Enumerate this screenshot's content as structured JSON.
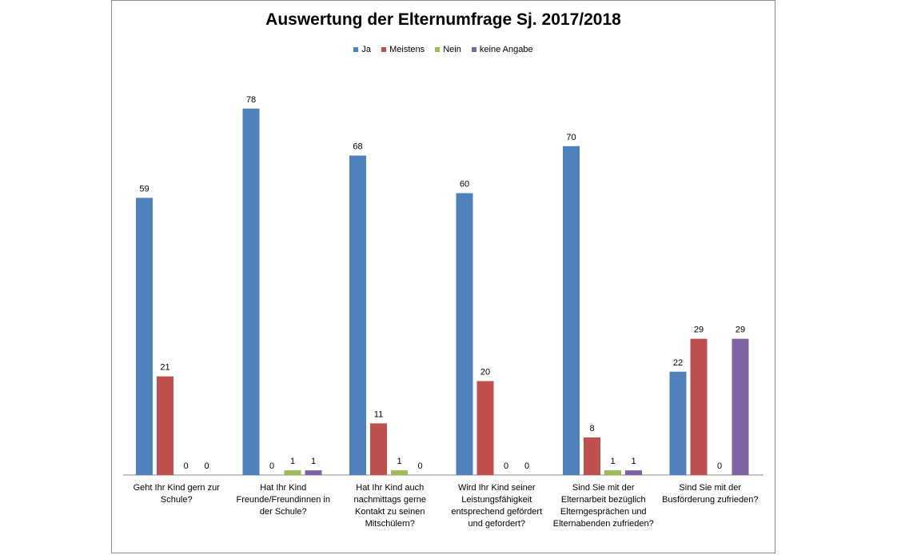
{
  "chart_data": {
    "type": "bar",
    "title": "Auswertung der Elternumfrage Sj. 2017/2018",
    "categories": [
      "Geht Ihr Kind gern zur Schule?",
      "Hat Ihr Kind Freunde/Freundinnen in der Schule?",
      "Hat Ihr Kind auch nachmittags gerne Kontakt zu seinen Mitschülern?",
      "Wird Ihr Kind seiner Leistungsfähigkeit entsprechend gefördert und gefordert?",
      "Sind Sie mit der Elternarbeit bezüglich Elterngesprächen und Elternabenden zufrieden?",
      "Sind Sie mit der Busförderung zufrieden?"
    ],
    "series": [
      {
        "name": "Ja",
        "color": "#4f81bd",
        "values": [
          59,
          78,
          68,
          60,
          70,
          22
        ]
      },
      {
        "name": "Meistens",
        "color": "#c0504d",
        "values": [
          21,
          0,
          11,
          20,
          8,
          29
        ]
      },
      {
        "name": "Nein",
        "color": "#9bbb59",
        "values": [
          0,
          1,
          1,
          0,
          1,
          0
        ]
      },
      {
        "name": "keine Angabe",
        "color": "#8064a2",
        "values": [
          0,
          1,
          0,
          0,
          1,
          29
        ]
      }
    ],
    "ylim": [
      0,
      80
    ],
    "legend": "top",
    "grid": false,
    "data_labels": true
  }
}
